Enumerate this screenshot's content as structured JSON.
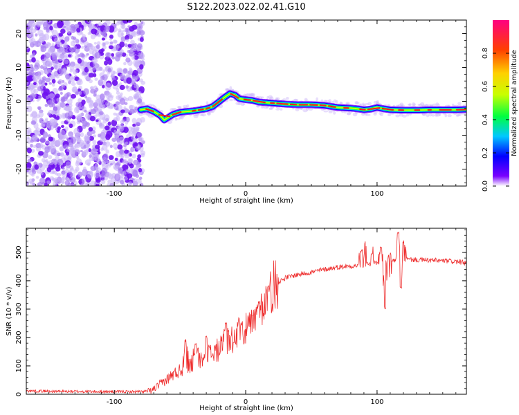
{
  "title": "S122.2023.022.02.41.G10",
  "chart_data": [
    {
      "type": "heatmap",
      "xlabel": "Height of straight line (km)",
      "ylabel": "Frequency (Hz)",
      "xlim": [
        -167,
        168
      ],
      "ylim": [
        -25,
        24
      ],
      "xticks": [
        "-100",
        "0",
        "100"
      ],
      "xtick_values": [
        -100,
        0,
        100
      ],
      "yticks": [
        "20",
        "10",
        "0",
        "-10",
        "-20"
      ],
      "ytick_values": [
        20,
        10,
        0,
        -10,
        -20
      ],
      "noise_region_x": [
        -167,
        -80
      ],
      "signal_ridge": {
        "x": [
          -80,
          -75,
          -70,
          -65,
          -62,
          -58,
          -55,
          -50,
          -45,
          -40,
          -35,
          -30,
          -25,
          -20,
          -15,
          -12,
          -8,
          -5,
          0,
          5,
          10,
          20,
          30,
          40,
          50,
          60,
          70,
          80,
          85,
          90,
          95,
          100,
          105,
          110,
          120,
          130,
          140,
          150,
          160,
          168
        ],
        "freq": [
          -2.5,
          -2.2,
          -3.0,
          -4.2,
          -5.5,
          -4.5,
          -3.8,
          -3.2,
          -3.0,
          -2.8,
          -2.5,
          -2.2,
          -1.5,
          0.0,
          1.5,
          2.3,
          1.8,
          0.8,
          0.5,
          0.3,
          -0.2,
          -0.5,
          -0.8,
          -1.0,
          -1.0,
          -1.2,
          -1.8,
          -2.0,
          -2.2,
          -2.5,
          -2.3,
          -1.8,
          -2.2,
          -2.5,
          -2.6,
          -2.6,
          -2.5,
          -2.5,
          -2.5,
          -2.4
        ]
      },
      "colorbar": {
        "label": "Normalized spectral amplitude",
        "range": [
          0,
          1
        ],
        "ticks": [
          "0.0",
          "0.2",
          "0.4",
          "0.6",
          "0.8"
        ],
        "tick_values": [
          0,
          0.2,
          0.4,
          0.6,
          0.8
        ],
        "colors": [
          "#ffffff",
          "#7a00ff",
          "#0000ff",
          "#00c8ff",
          "#00ff40",
          "#c8ff00",
          "#ffd000",
          "#ff4000",
          "#ff0080"
        ]
      }
    },
    {
      "type": "line",
      "xlabel": "Height of straight line (km)",
      "ylabel": "SNR (10 * v/v)",
      "xlim": [
        -167,
        168
      ],
      "ylim": [
        0,
        585
      ],
      "xticks": [
        "-100",
        "0",
        "100"
      ],
      "xtick_values": [
        -100,
        0,
        100
      ],
      "yticks": [
        "0",
        "100",
        "200",
        "300",
        "400",
        "500"
      ],
      "ytick_values": [
        0,
        100,
        200,
        300,
        400,
        500
      ],
      "color": "#ee2d2d",
      "series_trend": {
        "x": [
          -167,
          -140,
          -100,
          -80,
          -72,
          -65,
          -55,
          -45,
          -35,
          -25,
          -15,
          -5,
          5,
          10,
          15,
          20,
          25,
          30,
          40,
          50,
          60,
          70,
          80,
          90,
          100,
          110,
          120,
          140,
          160,
          168
        ],
        "y": [
          12,
          10,
          9,
          9,
          12,
          35,
          70,
          100,
          120,
          145,
          175,
          210,
          245,
          290,
          340,
          375,
          395,
          410,
          422,
          430,
          440,
          448,
          452,
          455,
          462,
          470,
          475,
          472,
          468,
          462
        ]
      },
      "spikes": [
        {
          "x": -46,
          "y": 195
        },
        {
          "x": -38,
          "y": 185
        },
        {
          "x": -30,
          "y": 205
        },
        {
          "x": -15,
          "y": 255
        },
        {
          "x": -5,
          "y": 270
        },
        {
          "x": 10,
          "y": 330
        },
        {
          "x": 17,
          "y": 385
        },
        {
          "x": 88,
          "y": 510
        },
        {
          "x": 91,
          "y": 540
        },
        {
          "x": 96,
          "y": 500
        },
        {
          "x": 103,
          "y": 520
        },
        {
          "x": 106,
          "y": 310
        },
        {
          "x": 110,
          "y": 500
        },
        {
          "x": 116,
          "y": 575
        },
        {
          "x": 118,
          "y": 380
        },
        {
          "x": 120,
          "y": 540
        }
      ]
    }
  ]
}
